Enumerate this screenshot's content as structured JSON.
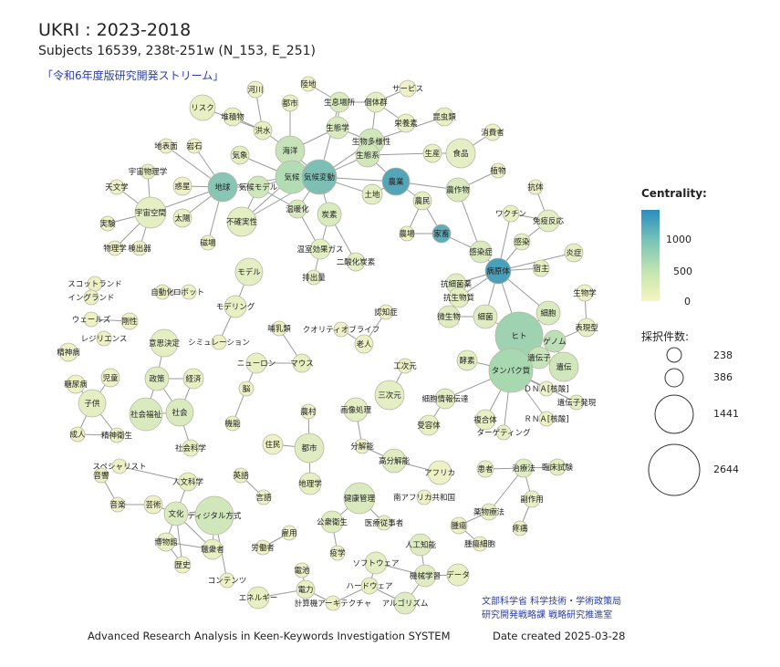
{
  "header": {
    "title": "UKRI : 2023-2018",
    "subtitle": "Subjects 16539, 238t-251w (N_153, E_251)",
    "stream": "「令和6年度版研究開発ストリーム」"
  },
  "legend": {
    "centrality_title": "Centrality:",
    "centrality_ticks": [
      "1000",
      "500",
      "0"
    ],
    "size_title": "採択件数:",
    "size_values": [
      "238",
      "386",
      "1441",
      "2644"
    ]
  },
  "footer": {
    "system": "Advanced Research Analysis in Keen-Keywords Investigation SYSTEM",
    "date": "Date created 2025-03-28",
    "org_line1": "文部科学省 科学技術・学術政策局",
    "org_line2": "研究開発戦略課 戦略研究推進室"
  },
  "colors": {
    "high": "#2b8cbe",
    "mid": "#a8d8b0",
    "low": "#f7f5c8",
    "edge": "#9a9a9a"
  },
  "nodes": [
    {
      "id": "kawa",
      "label": "河川",
      "c": 0.05
    },
    {
      "id": "toshi_u",
      "label": "都市",
      "c": 0.08
    },
    {
      "id": "rikuchi",
      "label": "陸地",
      "c": 0.05
    },
    {
      "id": "seisoku",
      "label": "生息場所",
      "c": 0.15
    },
    {
      "id": "kotaigun",
      "label": "個体群",
      "c": 0.1
    },
    {
      "id": "service",
      "label": "サービス",
      "c": 0.05
    },
    {
      "id": "risk",
      "label": "リスク",
      "c": 0.08
    },
    {
      "id": "taiseki",
      "label": "堆積物",
      "c": 0.08
    },
    {
      "id": "seitaigaku",
      "label": "生態学",
      "c": 0.15
    },
    {
      "id": "eiyouso",
      "label": "栄養素",
      "c": 0.08
    },
    {
      "id": "konchu",
      "label": "昆虫類",
      "c": 0.08
    },
    {
      "id": "kouzui",
      "label": "洪水",
      "c": 0.08
    },
    {
      "id": "kaiyou",
      "label": "海洋",
      "c": 0.25
    },
    {
      "id": "seibutsu",
      "label": "生物多様性",
      "c": 0.2
    },
    {
      "id": "shohisha",
      "label": "消費者",
      "c": 0.05
    },
    {
      "id": "chihyomen",
      "label": "地表面",
      "c": 0.05
    },
    {
      "id": "ganseki",
      "label": "岩石",
      "c": 0.05
    },
    {
      "id": "kishou",
      "label": "気象",
      "c": 0.1
    },
    {
      "id": "seitaikei",
      "label": "生態系",
      "c": 0.2
    },
    {
      "id": "shokuhin",
      "label": "食品",
      "c": 0.1
    },
    {
      "id": "uchu",
      "label": "宇宙物理学",
      "c": 0.08
    },
    {
      "id": "kikou",
      "label": "気候",
      "c": 0.35
    },
    {
      "id": "kikouhendou",
      "label": "気候変動",
      "c": 0.6
    },
    {
      "id": "seisan",
      "label": "生産",
      "c": 0.08
    },
    {
      "id": "shokubutsu",
      "label": "植物",
      "c": 0.05
    },
    {
      "id": "tenmon",
      "label": "天文学",
      "c": 0.05
    },
    {
      "id": "wakusei",
      "label": "惑星",
      "c": 0.05
    },
    {
      "id": "chikyu",
      "label": "地球",
      "c": 0.55
    },
    {
      "id": "kikoumodel",
      "label": "気候モデル",
      "c": 0.2
    },
    {
      "id": "nougyou",
      "label": "農業",
      "c": 0.8
    },
    {
      "id": "tochi",
      "label": "土地",
      "c": 0.1
    },
    {
      "id": "sakumotsu",
      "label": "農作物",
      "c": 0.15
    },
    {
      "id": "koutai",
      "label": "抗体",
      "c": 0.05
    },
    {
      "id": "uchukukan",
      "label": "宇宙空間",
      "c": 0.1
    },
    {
      "id": "taiyou",
      "label": "太陽",
      "c": 0.08
    },
    {
      "id": "fuka",
      "label": "不確実性",
      "c": 0.1
    },
    {
      "id": "ondanka",
      "label": "温暖化",
      "c": 0.15
    },
    {
      "id": "tanso",
      "label": "炭素",
      "c": 0.15
    },
    {
      "id": "noumin",
      "label": "農民",
      "c": 0.1
    },
    {
      "id": "vaccine",
      "label": "ワクチン",
      "c": 0.08
    },
    {
      "id": "meneki",
      "label": "免疫反応",
      "c": 0.1
    },
    {
      "id": "jikken",
      "label": "実験",
      "c": 0.05
    },
    {
      "id": "butsurigaku",
      "label": "物理学",
      "c": 0.05
    },
    {
      "id": "kenshutsuki",
      "label": "検出器",
      "c": 0.05
    },
    {
      "id": "jiba",
      "label": "磁場",
      "c": 0.05
    },
    {
      "id": "onshitsu",
      "label": "温室効果ガス",
      "c": 0.1
    },
    {
      "id": "noujou",
      "label": "農場",
      "c": 0.05
    },
    {
      "id": "kachiku",
      "label": "家畜",
      "c": 0.75
    },
    {
      "id": "kansensho",
      "label": "感染症",
      "c": 0.15
    },
    {
      "id": "kansen",
      "label": "感染",
      "c": 0.1
    },
    {
      "id": "enshou",
      "label": "炎症",
      "c": 0.08
    },
    {
      "id": "nisanka",
      "label": "二酸化炭素",
      "c": 0.1
    },
    {
      "id": "haishutsu",
      "label": "排出量",
      "c": 0.08
    },
    {
      "id": "model",
      "label": "モデル",
      "c": 0.1
    },
    {
      "id": "byougentai",
      "label": "病原体",
      "c": 0.85
    },
    {
      "id": "shukushu",
      "label": "宿主",
      "c": 0.1
    },
    {
      "id": "scotland",
      "label": "スコットランド",
      "c": 0.05
    },
    {
      "id": "england",
      "label": "イングランド",
      "c": 0.05
    },
    {
      "id": "jidouka",
      "label": "自動化",
      "c": 0.05
    },
    {
      "id": "robot",
      "label": "ロボット",
      "c": 0.05
    },
    {
      "id": "kousaibou",
      "label": "抗細菌薬",
      "c": 0.1
    },
    {
      "id": "kousei",
      "label": "抗生物質",
      "c": 0.1
    },
    {
      "id": "seibutsugaku",
      "label": "生物学",
      "c": 0.05
    },
    {
      "id": "modeling",
      "label": "モデリング",
      "c": 0.08
    },
    {
      "id": "ninchisho",
      "label": "認知症",
      "c": 0.05
    },
    {
      "id": "biseibutsu",
      "label": "微生物",
      "c": 0.12
    },
    {
      "id": "saikin",
      "label": "細菌",
      "c": 0.12
    },
    {
      "id": "saibou",
      "label": "細胞",
      "c": 0.15
    },
    {
      "id": "wales",
      "label": "ウェールズ",
      "c": 0.05
    },
    {
      "id": "kousei2",
      "label": "剛性",
      "c": 0.05
    },
    {
      "id": "nyurui",
      "label": "哺乳類",
      "c": 0.05
    },
    {
      "id": "qol",
      "label": "クオリティオブライフ",
      "c": 0.05
    },
    {
      "id": "hyogen",
      "label": "表現型",
      "c": 0.08
    },
    {
      "id": "resilience",
      "label": "レジリエンス",
      "c": 0.05
    },
    {
      "id": "ishikettei",
      "label": "意思決定",
      "c": 0.1
    },
    {
      "id": "simulation",
      "label": "シミュレーション",
      "c": 0.05
    },
    {
      "id": "rojin",
      "label": "老人",
      "c": 0.05
    },
    {
      "id": "hito",
      "label": "ヒト",
      "c": 0.45
    },
    {
      "id": "genome",
      "label": "ゲノム",
      "c": 0.3
    },
    {
      "id": "ibyo",
      "label": "精神病",
      "c": 0.05
    },
    {
      "id": "neuron",
      "label": "ニューロン",
      "c": 0.08
    },
    {
      "id": "mouse",
      "label": "マウス",
      "c": 0.08
    },
    {
      "id": "kousuigen",
      "label": "工次元",
      "c": 0.05
    },
    {
      "id": "kouso",
      "label": "酵素",
      "c": 0.1
    },
    {
      "id": "idenshi",
      "label": "遺伝子",
      "c": 0.25
    },
    {
      "id": "iden",
      "label": "遺伝",
      "c": 0.2
    },
    {
      "id": "jidou",
      "label": "児童",
      "c": 0.05
    },
    {
      "id": "seisaku",
      "label": "政策",
      "c": 0.12
    },
    {
      "id": "keizai",
      "label": "経済",
      "c": 0.08
    },
    {
      "id": "tanpaku",
      "label": "タンパク質",
      "c": 0.4
    },
    {
      "id": "tounyou",
      "label": "糖尿病",
      "c": 0.05
    },
    {
      "id": "sanjigen",
      "label": "三次元",
      "c": 0.1
    },
    {
      "id": "dna",
      "label": "ＤＮＡ[核酸]",
      "c": 0.05
    },
    {
      "id": "nou",
      "label": "脳",
      "c": 0.05
    },
    {
      "id": "kodomo",
      "label": "子供",
      "c": 0.1
    },
    {
      "id": "shakaifukushi",
      "label": "社会福祉",
      "c": 0.15
    },
    {
      "id": "shakai",
      "label": "社会",
      "c": 0.15
    },
    {
      "id": "saibou_den",
      "label": "細胞情報伝達",
      "c": 0.1
    },
    {
      "id": "idenshihatsugen",
      "label": "遺伝子発現",
      "c": 0.1
    },
    {
      "id": "gazoushori",
      "label": "画像処理",
      "c": 0.1
    },
    {
      "id": "rna",
      "label": "ＲＮＡ[核酸]",
      "c": 0.05
    },
    {
      "id": "kinou",
      "label": "機能",
      "c": 0.05
    },
    {
      "id": "noumura",
      "label": "農村",
      "c": 0.05
    },
    {
      "id": "juyoutai",
      "label": "受容体",
      "c": 0.08
    },
    {
      "id": "fukugoutai",
      "label": "複合体",
      "c": 0.08
    },
    {
      "id": "seijin",
      "label": "成人",
      "c": 0.05
    },
    {
      "id": "seishineisei",
      "label": "精神衛生",
      "c": 0.05
    },
    {
      "id": "target",
      "label": "ターゲティング",
      "c": 0.08
    },
    {
      "id": "shakaikagaku",
      "label": "社会科学",
      "c": 0.08
    },
    {
      "id": "jumin",
      "label": "住民",
      "c": 0.05
    },
    {
      "id": "toshi",
      "label": "都市",
      "c": 0.12
    },
    {
      "id": "bunkainou",
      "label": "分解能",
      "c": 0.05
    },
    {
      "id": "koubunkai",
      "label": "高分解能",
      "c": 0.12
    },
    {
      "id": "specialist",
      "label": "スペシャリスト",
      "c": 0.05
    },
    {
      "id": "africa",
      "label": "アフリカ",
      "c": 0.05
    },
    {
      "id": "kanja",
      "label": "患者",
      "c": 0.08
    },
    {
      "id": "chiryou",
      "label": "治療法",
      "c": 0.12
    },
    {
      "id": "rinsho",
      "label": "臨床試験",
      "c": 0.1
    },
    {
      "id": "jinbun",
      "label": "人文科学",
      "c": 0.08
    },
    {
      "id": "chirigaku",
      "label": "地理学",
      "c": 0.08
    },
    {
      "id": "ongaku",
      "label": "音響",
      "c": 0.05
    },
    {
      "id": "eiga",
      "label": "英語",
      "c": 0.05
    },
    {
      "id": "kenkoukanri",
      "label": "健康管理",
      "c": 0.15
    },
    {
      "id": "minamiafrica",
      "label": "南アフリカ共和国",
      "c": 0.05
    },
    {
      "id": "fukusayou",
      "label": "副作用",
      "c": 0.08
    },
    {
      "id": "geijutsu",
      "label": "芸術",
      "c": 0.05
    },
    {
      "id": "ongaku2",
      "label": "音楽",
      "c": 0.05
    },
    {
      "id": "bunka",
      "label": "文化",
      "c": 0.15
    },
    {
      "id": "digital",
      "label": "ディジタル方式",
      "c": 0.2
    },
    {
      "id": "gengo",
      "label": "言語",
      "c": 0.05
    },
    {
      "id": "yakubutsu",
      "label": "薬物療法",
      "c": 0.08
    },
    {
      "id": "koushueisei",
      "label": "公衆衛生",
      "c": 0.12
    },
    {
      "id": "iryou",
      "label": "医療従事者",
      "c": 0.08
    },
    {
      "id": "shuyou",
      "label": "腫瘍",
      "c": 0.05
    },
    {
      "id": "hakubutsukan",
      "label": "博物館",
      "c": 0.08
    },
    {
      "id": "koyou",
      "label": "雇用",
      "c": 0.05
    },
    {
      "id": "toushi",
      "label": "疼痛",
      "c": 0.05
    },
    {
      "id": "choushusha",
      "label": "聴衆者",
      "c": 0.08
    },
    {
      "id": "roudousha",
      "label": "労働者",
      "c": 0.05
    },
    {
      "id": "ekigaku",
      "label": "疫学",
      "c": 0.05
    },
    {
      "id": "jinkouchinou",
      "label": "人工知能",
      "c": 0.12
    },
    {
      "id": "shuyousaibou",
      "label": "腫瘍細胞",
      "c": 0.05
    },
    {
      "id": "rekishi",
      "label": "歴史",
      "c": 0.05
    },
    {
      "id": "software",
      "label": "ソフトウェア",
      "c": 0.1
    },
    {
      "id": "kikaigakushu",
      "label": "機械学習",
      "c": 0.12
    },
    {
      "id": "data",
      "label": "データ",
      "c": 0.08
    },
    {
      "id": "contents",
      "label": "コンテンツ",
      "c": 0.05
    },
    {
      "id": "denchi",
      "label": "電池",
      "c": 0.05
    },
    {
      "id": "hardware",
      "label": "ハードウェア",
      "c": 0.08
    },
    {
      "id": "energy",
      "label": "エネルギー",
      "c": 0.08
    },
    {
      "id": "denryoku",
      "label": "電力",
      "c": 0.08
    },
    {
      "id": "keisanki",
      "label": "計算機アーキテクチャ",
      "c": 0.05
    },
    {
      "id": "algorithm",
      "label": "アルゴリズム",
      "c": 0.12
    }
  ],
  "edges": [
    [
      "kawa",
      "kouzui"
    ],
    [
      "toshi_u",
      "kaiyou"
    ],
    [
      "rikuchi",
      "seisoku"
    ],
    [
      "seisoku",
      "kotaigun"
    ],
    [
      "seisoku",
      "seitaigaku"
    ],
    [
      "kotaigun",
      "service"
    ],
    [
      "kotaigun",
      "eiyouso"
    ],
    [
      "seitaigaku",
      "seibutsu"
    ],
    [
      "seitaigaku",
      "kaiyou"
    ],
    [
      "kotaigun",
      "seibutsu"
    ],
    [
      "konchu",
      "seibutsu"
    ],
    [
      "risk",
      "kouzui"
    ],
    [
      "taiseki",
      "kouzui"
    ],
    [
      "kouzui",
      "kaiyou"
    ],
    [
      "kaiyou",
      "kikou"
    ],
    [
      "seibutsu",
      "seitaikei"
    ],
    [
      "seitaikei",
      "kikouhendou"
    ],
    [
      "seitaikei",
      "nougyou"
    ],
    [
      "seitaikei",
      "seisan"
    ],
    [
      "shokuhin",
      "seisan"
    ],
    [
      "shohisha",
      "shokuhin"
    ],
    [
      "chihyomen",
      "chikyu"
    ],
    [
      "ganseki",
      "chikyu"
    ],
    [
      "kishou",
      "kikou"
    ],
    [
      "uchu",
      "uchukukan"
    ],
    [
      "kikou",
      "kikouhendou"
    ],
    [
      "kikou",
      "kikoumodel"
    ],
    [
      "kikouhendou",
      "nougyou"
    ],
    [
      "kikouhendou",
      "tanso"
    ],
    [
      "kikouhendou",
      "ondanka"
    ],
    [
      "kikouhendou",
      "fuka"
    ],
    [
      "kikouhendou",
      "tochi"
    ],
    [
      "nougyou",
      "sakumotsu"
    ],
    [
      "nougyou",
      "tochi"
    ],
    [
      "nougyou",
      "noumin"
    ],
    [
      "shokubutsu",
      "sakumotsu"
    ],
    [
      "tenmon",
      "uchukukan"
    ],
    [
      "wakusei",
      "chikyu"
    ],
    [
      "chikyu",
      "kikou"
    ],
    [
      "chikyu",
      "taiyou"
    ],
    [
      "chikyu",
      "uchukukan"
    ],
    [
      "chikyu",
      "jiba"
    ],
    [
      "kikoumodel",
      "fuka"
    ],
    [
      "kikoumodel",
      "ondanka"
    ],
    [
      "tanso",
      "onshitsu"
    ],
    [
      "tanso",
      "nisanka"
    ],
    [
      "onshitsu",
      "haishutsu"
    ],
    [
      "ondanka",
      "onshitsu"
    ],
    [
      "noumin",
      "noujou"
    ],
    [
      "noumin",
      "kachiku"
    ],
    [
      "kachiku",
      "noujou"
    ],
    [
      "kachiku",
      "kansensho"
    ],
    [
      "sakumotsu",
      "kansensho"
    ],
    [
      "koutai",
      "meneki"
    ],
    [
      "vaccine",
      "meneki"
    ],
    [
      "meneki",
      "kansen"
    ],
    [
      "vaccine",
      "byougentai"
    ],
    [
      "kansen",
      "byougentai"
    ],
    [
      "kansensho",
      "byougentai"
    ],
    [
      "enshou",
      "byougentai"
    ],
    [
      "shukushu",
      "byougentai"
    ],
    [
      "byougentai",
      "kousaibou"
    ],
    [
      "byougentai",
      "kousei"
    ],
    [
      "byougentai",
      "saikin"
    ],
    [
      "byougentai",
      "hito"
    ],
    [
      "byougentai",
      "saibou"
    ],
    [
      "kousaibou",
      "kousei"
    ],
    [
      "kousei",
      "biseibutsu"
    ],
    [
      "biseibutsu",
      "saikin"
    ],
    [
      "saikin",
      "hito"
    ],
    [
      "saibou",
      "hito"
    ],
    [
      "seibutsugaku",
      "hyogen"
    ],
    [
      "hyogen",
      "genome"
    ],
    [
      "hito",
      "genome"
    ],
    [
      "hito",
      "tanpaku"
    ],
    [
      "hito",
      "idenshi"
    ],
    [
      "genome",
      "iden"
    ],
    [
      "idenshi",
      "iden"
    ],
    [
      "tanpaku",
      "kouso"
    ],
    [
      "tanpaku",
      "dna"
    ],
    [
      "tanpaku",
      "rna"
    ],
    [
      "tanpaku",
      "idenshihatsugen"
    ],
    [
      "tanpaku",
      "saibou_den"
    ],
    [
      "tanpaku",
      "fukugoutai"
    ],
    [
      "tanpaku",
      "target"
    ],
    [
      "saibou_den",
      "juyoutai"
    ],
    [
      "uchukukan",
      "jikken"
    ],
    [
      "uchukukan",
      "butsurigaku"
    ],
    [
      "uchukukan",
      "kenshutsuki"
    ],
    [
      "model",
      "modeling"
    ],
    [
      "modeling",
      "simulation"
    ],
    [
      "nyurui",
      "mouse"
    ],
    [
      "neuron",
      "mouse"
    ],
    [
      "neuron",
      "nou"
    ],
    [
      "nou",
      "kinou"
    ],
    [
      "ninchisho",
      "rojin"
    ],
    [
      "qol",
      "rojin"
    ],
    [
      "scotland",
      "england"
    ],
    [
      "jidouka",
      "robot"
    ],
    [
      "wales",
      "kousei2"
    ],
    [
      "ishikettei",
      "seisaku"
    ],
    [
      "seisaku",
      "keizai"
    ],
    [
      "seisaku",
      "shakai"
    ],
    [
      "keizai",
      "shakai"
    ],
    [
      "shakaifukushi",
      "shakai"
    ],
    [
      "shakai",
      "shakaikagaku"
    ],
    [
      "shakaifukushi",
      "seisaku"
    ],
    [
      "jidou",
      "kodomo"
    ],
    [
      "kodomo",
      "tounyou"
    ],
    [
      "kodomo",
      "seijin"
    ],
    [
      "kodomo",
      "seishineisei"
    ],
    [
      "seishineisei",
      "seijin"
    ],
    [
      "kousuigen",
      "sanjigen"
    ],
    [
      "gazoushori",
      "bunkainou"
    ],
    [
      "bunkainou",
      "koubunkai"
    ],
    [
      "koubunkai",
      "africa"
    ],
    [
      "noumura",
      "toshi"
    ],
    [
      "jumin",
      "toshi"
    ],
    [
      "toshi",
      "chirigaku"
    ],
    [
      "kanja",
      "chiryou"
    ],
    [
      "chiryou",
      "rinsho"
    ],
    [
      "chiryou",
      "fukusayou"
    ],
    [
      "chiryou",
      "yakubutsu"
    ],
    [
      "yakubutsu",
      "shuyou"
    ],
    [
      "shuyou",
      "shuyousaibou"
    ],
    [
      "fukusayou",
      "toushi"
    ],
    [
      "jinbun",
      "bunka"
    ],
    [
      "jinbun",
      "specialist"
    ],
    [
      "bunka",
      "geijutsu"
    ],
    [
      "bunka",
      "digital"
    ],
    [
      "bunka",
      "hakubutsukan"
    ],
    [
      "bunka",
      "choushusha"
    ],
    [
      "bunka",
      "rekishi"
    ],
    [
      "geijutsu",
      "ongaku2"
    ],
    [
      "ongaku",
      "ongaku2"
    ],
    [
      "digital",
      "choushusha"
    ],
    [
      "digital",
      "contents"
    ],
    [
      "hakubutsukan",
      "choushusha"
    ],
    [
      "hakubutsukan",
      "rekishi"
    ],
    [
      "eiga",
      "gengo"
    ],
    [
      "kenkoukanri",
      "koushueisei"
    ],
    [
      "kenkoukanri",
      "iryou"
    ],
    [
      "koushueisei",
      "ekigaku"
    ],
    [
      "koyou",
      "roudousha"
    ],
    [
      "jinkouchinou",
      "kikaigakushu"
    ],
    [
      "kikaigakushu",
      "data"
    ],
    [
      "kikaigakushu",
      "software"
    ],
    [
      "software",
      "hardware"
    ],
    [
      "hardware",
      "keisanki"
    ],
    [
      "hardware",
      "algorithm"
    ],
    [
      "denchi",
      "denryoku"
    ],
    [
      "energy",
      "denryoku"
    ],
    [
      "denryoku",
      "keisanki"
    ],
    [
      "algorithm",
      "kikaigakushu"
    ],
    [
      "seisoku",
      "kikouhendou"
    ],
    [
      "kikouhendou",
      "seibutsu"
    ],
    [
      "chikyu",
      "kikoumodel"
    ],
    [
      "kikou",
      "fuka"
    ],
    [
      "kaiyou",
      "kikouhendou"
    ]
  ]
}
